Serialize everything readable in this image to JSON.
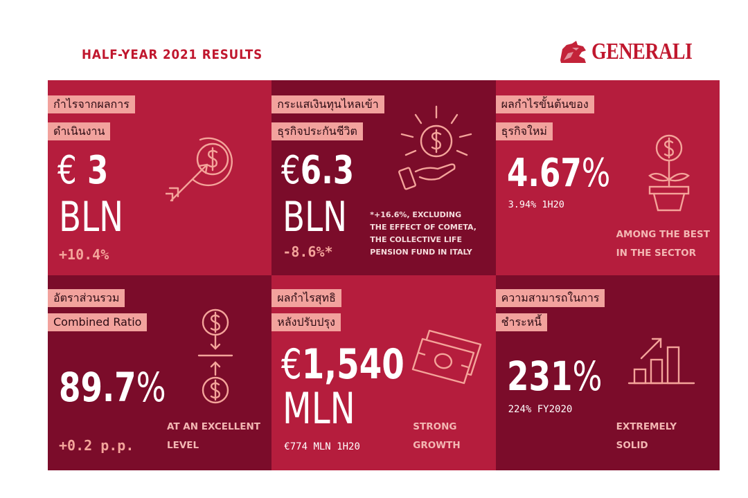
{
  "header": {
    "title": "HALF-YEAR 2021 RESULTS",
    "logo_text": "GENERALI"
  },
  "colors": {
    "brand": "#c0172e",
    "cell_light": "#b51d3d",
    "cell_dark": "#7b0c2a",
    "label_bg": "#f2a29d",
    "accent_text": "#f4a49a"
  },
  "cells": [
    {
      "label_lines": [
        "กำไรจากผลการ",
        "ดำเนินงาน"
      ],
      "currency": "€",
      "value": "3",
      "unit": "BLN",
      "change": "+10.4%",
      "icon": "target-dollar-arrow-icon"
    },
    {
      "label_lines": [
        "กระแสเงินทุนไหลเข้า",
        "ธุรกิจประกันชีวิต"
      ],
      "currency": "€",
      "value": "6.3",
      "unit": "BLN",
      "change": "-8.6%*",
      "note": "*+16.6%, EXCLUDING\nTHE EFFECT OF COMETA,\nTHE COLLECTIVE LIFE\nPENSION FUND IN ITALY",
      "icon": "hand-coin-shine-icon"
    },
    {
      "label_lines": [
        "ผลกำไรขั้นต้นของ",
        "ธุรกิจใหม่"
      ],
      "value": "4.67",
      "percent": "%",
      "sub": "3.94% 1H20",
      "caption": "AMONG THE BEST\nIN THE SECTOR",
      "icon": "money-plant-icon"
    },
    {
      "label_lines": [
        "อัตราส่วนรวม",
        "Combined Ratio"
      ],
      "value": "89.7",
      "percent": "%",
      "change": "+0.2 p.p.",
      "caption": "AT AN EXCELLENT\nLEVEL",
      "icon": "coins-compress-icon"
    },
    {
      "label_lines": [
        "ผลกำไรสุทธิ",
        "หลังปรับปรุง"
      ],
      "currency": "€",
      "value": "1,540",
      "unit": "MLN",
      "sub": "€774 MLN 1H20",
      "caption": "STRONG\nGROWTH",
      "icon": "banknotes-icon"
    },
    {
      "label_lines": [
        "ความสามารถในการ",
        "ชำระหนี้"
      ],
      "value": "231",
      "percent": "%",
      "sub": "224% FY2020",
      "caption": "EXTREMELY\nSOLID",
      "icon": "growth-bars-icon"
    }
  ]
}
